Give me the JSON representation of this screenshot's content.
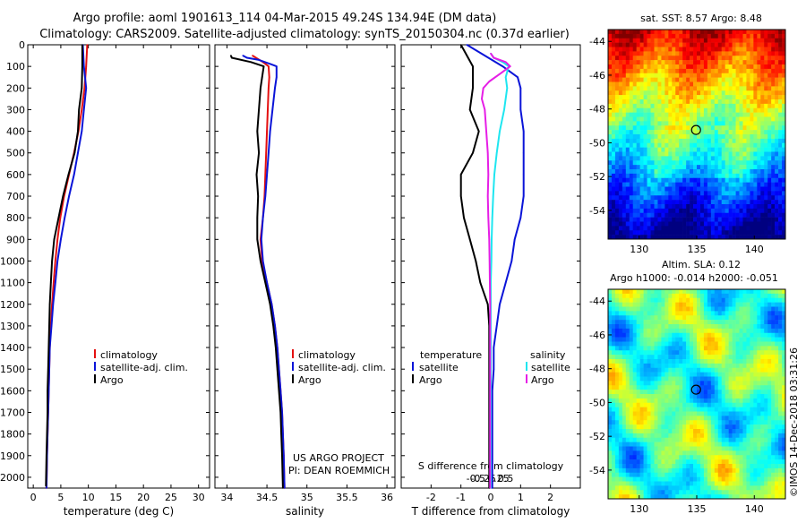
{
  "header": {
    "line1": "Argo profile: aoml 1901613_114 04-Mar-2015 49.24S 134.94E (DM data)",
    "line2": "Climatology: CARS2009. Satellite-adjusted climatology: synTS_20150304.nc (0.37d earlier)"
  },
  "map1": {
    "title": "sat. SST: 8.57 Argo: 8.48",
    "xticks": [
      "130",
      "135",
      "140"
    ],
    "yticks": [
      "-44",
      "-46",
      "-48",
      "-50",
      "-52",
      "-54"
    ]
  },
  "map2": {
    "title1": "Altim. SLA: 0.12",
    "title2": "Argo h1000: -0.014 h2000: -0.051",
    "xticks": [
      "130",
      "135",
      "140"
    ],
    "yticks": [
      "-44",
      "-46",
      "-48",
      "-50",
      "-52",
      "-54"
    ]
  },
  "credit": {
    "line1": "US ARGO PROJECT",
    "line2": "PI: DEAN ROEMMICH"
  },
  "imos": "©IMOS 14-Dec-2018 03:31:26",
  "colors": {
    "climatology": "#e41010",
    "satellite": "#0a14d8",
    "argo": "#000000",
    "salinity_sat": "#1ee6f0",
    "salinity_argo": "#e61ee6"
  },
  "chart_data": [
    {
      "type": "line",
      "xlabel": "temperature (deg C)",
      "ylabel": "",
      "xlim": [
        -1,
        32
      ],
      "ylim": [
        2050,
        0
      ],
      "xticks": [
        0,
        5,
        10,
        15,
        20,
        25,
        30
      ],
      "yticks": [
        0,
        100,
        200,
        300,
        400,
        500,
        600,
        700,
        800,
        900,
        1000,
        1100,
        1200,
        1300,
        1400,
        1500,
        1600,
        1700,
        1800,
        1900,
        2000
      ],
      "legend": [
        "climatology",
        "satellite-adj. clim.",
        "Argo"
      ],
      "series": [
        {
          "name": "climatology",
          "color_key": "climatology",
          "points": [
            [
              9.8,
              0
            ],
            [
              9.6,
              100
            ],
            [
              9.3,
              200
            ],
            [
              8.8,
              300
            ],
            [
              8.2,
              400
            ],
            [
              7.4,
              500
            ],
            [
              6.5,
              600
            ],
            [
              5.6,
              700
            ],
            [
              4.9,
              800
            ],
            [
              4.4,
              900
            ],
            [
              4.0,
              1000
            ],
            [
              3.7,
              1100
            ],
            [
              3.4,
              1200
            ],
            [
              3.2,
              1300
            ],
            [
              3.0,
              1400
            ],
            [
              2.9,
              1500
            ],
            [
              2.8,
              1600
            ],
            [
              2.7,
              1700
            ],
            [
              2.6,
              1800
            ],
            [
              2.5,
              1900
            ],
            [
              2.4,
              2050
            ]
          ]
        },
        {
          "name": "satellite-adj. clim.",
          "color_key": "satellite",
          "points": [
            [
              9.0,
              0
            ],
            [
              9.2,
              100
            ],
            [
              9.6,
              200
            ],
            [
              9.2,
              300
            ],
            [
              8.8,
              400
            ],
            [
              8.1,
              500
            ],
            [
              7.4,
              600
            ],
            [
              6.5,
              700
            ],
            [
              5.7,
              800
            ],
            [
              5.0,
              900
            ],
            [
              4.4,
              1000
            ],
            [
              4.0,
              1100
            ],
            [
              3.6,
              1200
            ],
            [
              3.3,
              1300
            ],
            [
              3.0,
              1400
            ],
            [
              2.9,
              1500
            ],
            [
              2.8,
              1600
            ],
            [
              2.7,
              1700
            ],
            [
              2.6,
              1800
            ],
            [
              2.5,
              1900
            ],
            [
              2.4,
              2050
            ]
          ]
        },
        {
          "name": "Argo",
          "color_key": "argo",
          "points": [
            [
              8.9,
              0
            ],
            [
              8.9,
              100
            ],
            [
              8.8,
              200
            ],
            [
              8.3,
              300
            ],
            [
              8.1,
              400
            ],
            [
              7.5,
              500
            ],
            [
              6.4,
              600
            ],
            [
              5.4,
              700
            ],
            [
              4.6,
              800
            ],
            [
              3.8,
              900
            ],
            [
              3.4,
              1000
            ],
            [
              3.2,
              1100
            ],
            [
              3.0,
              1200
            ],
            [
              2.9,
              1300
            ],
            [
              2.8,
              1400
            ],
            [
              2.7,
              1500
            ],
            [
              2.6,
              1600
            ],
            [
              2.6,
              1700
            ],
            [
              2.5,
              1800
            ],
            [
              2.4,
              1900
            ],
            [
              2.3,
              2040
            ]
          ]
        }
      ]
    },
    {
      "type": "line",
      "xlabel": "salinity",
      "ylabel": "",
      "xlim": [
        33.85,
        36.1
      ],
      "ylim": [
        2050,
        0
      ],
      "xticks": [
        34,
        34.5,
        35,
        35.5,
        36
      ],
      "legend": [
        "climatology",
        "satellite-adj. clim.",
        "Argo"
      ],
      "series": [
        {
          "name": "climatology",
          "color_key": "climatology",
          "points": [
            [
              34.32,
              50
            ],
            [
              34.45,
              80
            ],
            [
              34.52,
              100
            ],
            [
              34.53,
              150
            ],
            [
              34.52,
              200
            ],
            [
              34.51,
              300
            ],
            [
              34.5,
              400
            ],
            [
              34.49,
              500
            ],
            [
              34.48,
              600
            ],
            [
              34.47,
              700
            ],
            [
              34.45,
              800
            ],
            [
              34.42,
              900
            ],
            [
              34.44,
              1000
            ],
            [
              34.5,
              1100
            ],
            [
              34.56,
              1200
            ],
            [
              34.6,
              1300
            ],
            [
              34.63,
              1400
            ],
            [
              34.65,
              1500
            ],
            [
              34.67,
              1600
            ],
            [
              34.69,
              1700
            ],
            [
              34.7,
              1800
            ],
            [
              34.71,
              1900
            ],
            [
              34.72,
              2050
            ]
          ]
        },
        {
          "name": "satellite-adj. clim.",
          "color_key": "satellite",
          "points": [
            [
              34.2,
              50
            ],
            [
              34.25,
              60
            ],
            [
              34.4,
              70
            ],
            [
              34.55,
              90
            ],
            [
              34.62,
              100
            ],
            [
              34.62,
              150
            ],
            [
              34.6,
              200
            ],
            [
              34.57,
              300
            ],
            [
              34.54,
              400
            ],
            [
              34.52,
              500
            ],
            [
              34.5,
              600
            ],
            [
              34.48,
              700
            ],
            [
              34.45,
              800
            ],
            [
              34.43,
              900
            ],
            [
              34.45,
              1000
            ],
            [
              34.5,
              1100
            ],
            [
              34.56,
              1200
            ],
            [
              34.6,
              1300
            ],
            [
              34.63,
              1400
            ],
            [
              34.65,
              1500
            ],
            [
              34.67,
              1600
            ],
            [
              34.69,
              1700
            ],
            [
              34.7,
              1800
            ],
            [
              34.71,
              1900
            ],
            [
              34.72,
              2050
            ]
          ]
        },
        {
          "name": "Argo",
          "color_key": "argo",
          "points": [
            [
              34.05,
              50
            ],
            [
              34.06,
              60
            ],
            [
              34.3,
              80
            ],
            [
              34.46,
              100
            ],
            [
              34.44,
              150
            ],
            [
              34.42,
              200
            ],
            [
              34.4,
              300
            ],
            [
              34.38,
              400
            ],
            [
              34.4,
              500
            ],
            [
              34.37,
              600
            ],
            [
              34.39,
              700
            ],
            [
              34.38,
              800
            ],
            [
              34.38,
              900
            ],
            [
              34.42,
              1000
            ],
            [
              34.48,
              1100
            ],
            [
              34.54,
              1200
            ],
            [
              34.58,
              1300
            ],
            [
              34.61,
              1400
            ],
            [
              34.63,
              1500
            ],
            [
              34.65,
              1600
            ],
            [
              34.67,
              1700
            ],
            [
              34.68,
              1800
            ],
            [
              34.69,
              1900
            ],
            [
              34.7,
              2050
            ]
          ]
        }
      ]
    },
    {
      "type": "line",
      "xlabel": "T difference from climatology",
      "ylabel": "",
      "xlim": [
        -3,
        3
      ],
      "ylim": [
        2050,
        0
      ],
      "xticks": [
        -2,
        -1,
        0,
        1,
        2
      ],
      "top_label": "S difference from climatology",
      "top_ticks": [
        "-0.5",
        "-0.25",
        "0",
        "0.25",
        "0.5"
      ],
      "legend_temperature": [
        "temperature",
        "satellite",
        "Argo"
      ],
      "legend_salinity": [
        "salinity",
        "satellite",
        "Argo"
      ],
      "series": [
        {
          "name": "satellite",
          "group": "temperature",
          "color_key": "satellite",
          "points": [
            [
              -0.8,
              0
            ],
            [
              0.4,
              100
            ],
            [
              0.9,
              150
            ],
            [
              1.0,
              200
            ],
            [
              1.0,
              300
            ],
            [
              1.1,
              400
            ],
            [
              1.1,
              500
            ],
            [
              1.1,
              600
            ],
            [
              1.1,
              700
            ],
            [
              1.0,
              800
            ],
            [
              0.8,
              900
            ],
            [
              0.7,
              1000
            ],
            [
              0.5,
              1100
            ],
            [
              0.3,
              1200
            ],
            [
              0.2,
              1300
            ],
            [
              0.1,
              1400
            ],
            [
              0.1,
              1500
            ],
            [
              0.05,
              1600
            ],
            [
              0.05,
              1700
            ],
            [
              0.05,
              1800
            ],
            [
              0.05,
              1900
            ],
            [
              0.05,
              2050
            ]
          ]
        },
        {
          "name": "Argo",
          "group": "temperature",
          "color_key": "argo",
          "points": [
            [
              -1.0,
              0
            ],
            [
              -0.6,
              100
            ],
            [
              -0.6,
              200
            ],
            [
              -0.7,
              300
            ],
            [
              -0.4,
              400
            ],
            [
              -0.6,
              500
            ],
            [
              -1.0,
              600
            ],
            [
              -1.0,
              700
            ],
            [
              -0.9,
              800
            ],
            [
              -0.7,
              900
            ],
            [
              -0.5,
              1000
            ],
            [
              -0.35,
              1100
            ],
            [
              -0.1,
              1200
            ],
            [
              -0.05,
              1300
            ],
            [
              -0.05,
              1400
            ],
            [
              -0.05,
              1500
            ],
            [
              -0.05,
              1600
            ],
            [
              -0.05,
              1700
            ],
            [
              -0.05,
              1800
            ],
            [
              -0.05,
              1900
            ],
            [
              -0.05,
              2050
            ]
          ]
        },
        {
          "name": "satellite",
          "group": "salinity",
          "color_key": "salinity_sat",
          "points": [
            [
              0,
              40
            ],
            [
              0.1,
              60
            ],
            [
              0.4,
              80
            ],
            [
              0.6,
              100
            ],
            [
              0.5,
              150
            ],
            [
              0.55,
              200
            ],
            [
              0.45,
              300
            ],
            [
              0.3,
              400
            ],
            [
              0.2,
              500
            ],
            [
              0.12,
              600
            ],
            [
              0.08,
              700
            ],
            [
              0.05,
              800
            ],
            [
              0.03,
              900
            ],
            [
              0.02,
              1000
            ],
            [
              0.0,
              1100
            ],
            [
              0.0,
              1200
            ],
            [
              0.0,
              1400
            ],
            [
              0.0,
              1600
            ],
            [
              0.0,
              1800
            ],
            [
              0.0,
              2050
            ]
          ]
        },
        {
          "name": "Argo",
          "group": "salinity",
          "color_key": "salinity_argo",
          "points": [
            [
              0,
              40
            ],
            [
              0.1,
              60
            ],
            [
              0.5,
              80
            ],
            [
              0.65,
              100
            ],
            [
              0.35,
              130
            ],
            [
              -0.05,
              170
            ],
            [
              -0.25,
              200
            ],
            [
              -0.3,
              250
            ],
            [
              -0.2,
              300
            ],
            [
              -0.15,
              400
            ],
            [
              -0.1,
              500
            ],
            [
              -0.08,
              600
            ],
            [
              -0.1,
              700
            ],
            [
              -0.08,
              800
            ],
            [
              -0.05,
              900
            ],
            [
              -0.04,
              1000
            ],
            [
              -0.03,
              1100
            ],
            [
              -0.02,
              1200
            ],
            [
              -0.02,
              1400
            ],
            [
              -0.02,
              1600
            ],
            [
              -0.02,
              1800
            ],
            [
              -0.02,
              2050
            ]
          ]
        }
      ]
    }
  ]
}
